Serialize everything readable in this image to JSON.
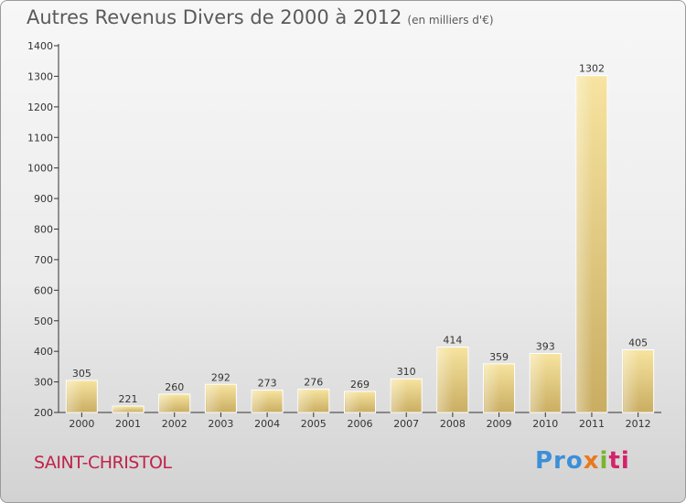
{
  "header": {
    "title": "Autres Revenus Divers de 2000 à 2012",
    "subtitle": "(en milliers d'€)"
  },
  "footer": {
    "place": "SAINT-CHRISTOL",
    "logo_text": "Proxiti",
    "logo_parts": [
      "Pro",
      "x",
      "i",
      "ti"
    ]
  },
  "colors": {
    "bar_top": "#f7e4a0",
    "bar_bottom": "#c9ad62",
    "axis": "#333333",
    "text": "#333333",
    "place": "#c0234a"
  },
  "chart_data": {
    "type": "bar",
    "title": "Autres Revenus Divers de 2000 à 2012",
    "subtitle": "(en milliers d'€)",
    "categories": [
      "2000",
      "2001",
      "2002",
      "2003",
      "2004",
      "2005",
      "2006",
      "2007",
      "2008",
      "2009",
      "2010",
      "2011",
      "2012"
    ],
    "values": [
      305,
      221,
      260,
      292,
      273,
      276,
      269,
      310,
      414,
      359,
      393,
      1302,
      405
    ],
    "ylim": [
      200,
      1400
    ],
    "yticks": [
      200,
      300,
      400,
      500,
      600,
      700,
      800,
      900,
      1000,
      1100,
      1200,
      1300,
      1400
    ],
    "data_labels": true,
    "grid": false,
    "xlabel": "",
    "ylabel": ""
  }
}
